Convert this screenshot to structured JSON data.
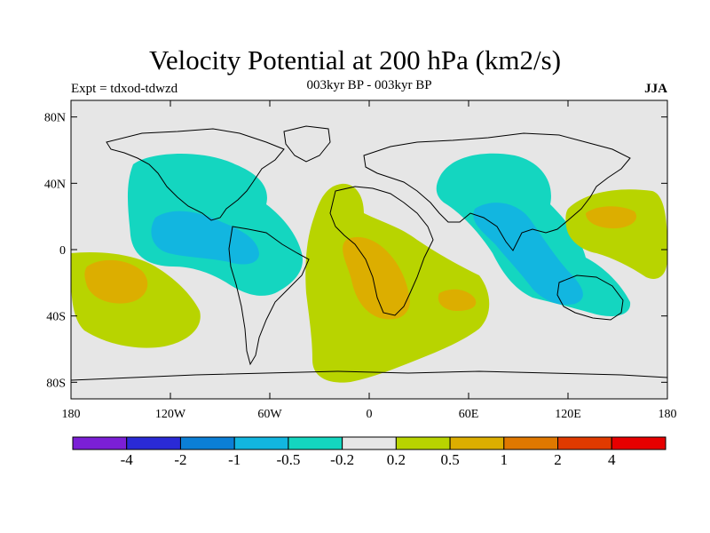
{
  "title": "Velocity Potential at 200 hPa (km2/s)",
  "subtitle_left": "Expt = tdxod-tdwzd",
  "subtitle_center": "003kyr BP - 003kyr BP",
  "subtitle_right": "JJA",
  "map": {
    "lon_range": [
      -180,
      180
    ],
    "lat_range": [
      -90,
      90
    ],
    "background": "#e6e6e6",
    "lat_ticks": [
      {
        "value": 80,
        "label": "80N"
      },
      {
        "value": 40,
        "label": "40N"
      },
      {
        "value": 0,
        "label": "0"
      },
      {
        "value": -40,
        "label": "40S"
      },
      {
        "value": -80,
        "label": "80S"
      }
    ],
    "lon_ticks": [
      {
        "value": -180,
        "label": "180"
      },
      {
        "value": -120,
        "label": "120W"
      },
      {
        "value": -60,
        "label": "60W"
      },
      {
        "value": 0,
        "label": "0"
      },
      {
        "value": 60,
        "label": "60E"
      },
      {
        "value": 120,
        "label": "120E"
      },
      {
        "value": 180,
        "label": "180"
      }
    ]
  },
  "colorbar": {
    "colors": [
      "#7b1fd6",
      "#2a2ad6",
      "#0b7fd6",
      "#12b6e0",
      "#14d6c0",
      "#e6e6e6",
      "#b8d400",
      "#dcae00",
      "#e07800",
      "#e03a00",
      "#e60000"
    ],
    "labels": [
      "-4",
      "-2",
      "-1",
      "-0.5",
      "-0.2",
      "0.2",
      "0.5",
      "1",
      "2",
      "4"
    ]
  }
}
